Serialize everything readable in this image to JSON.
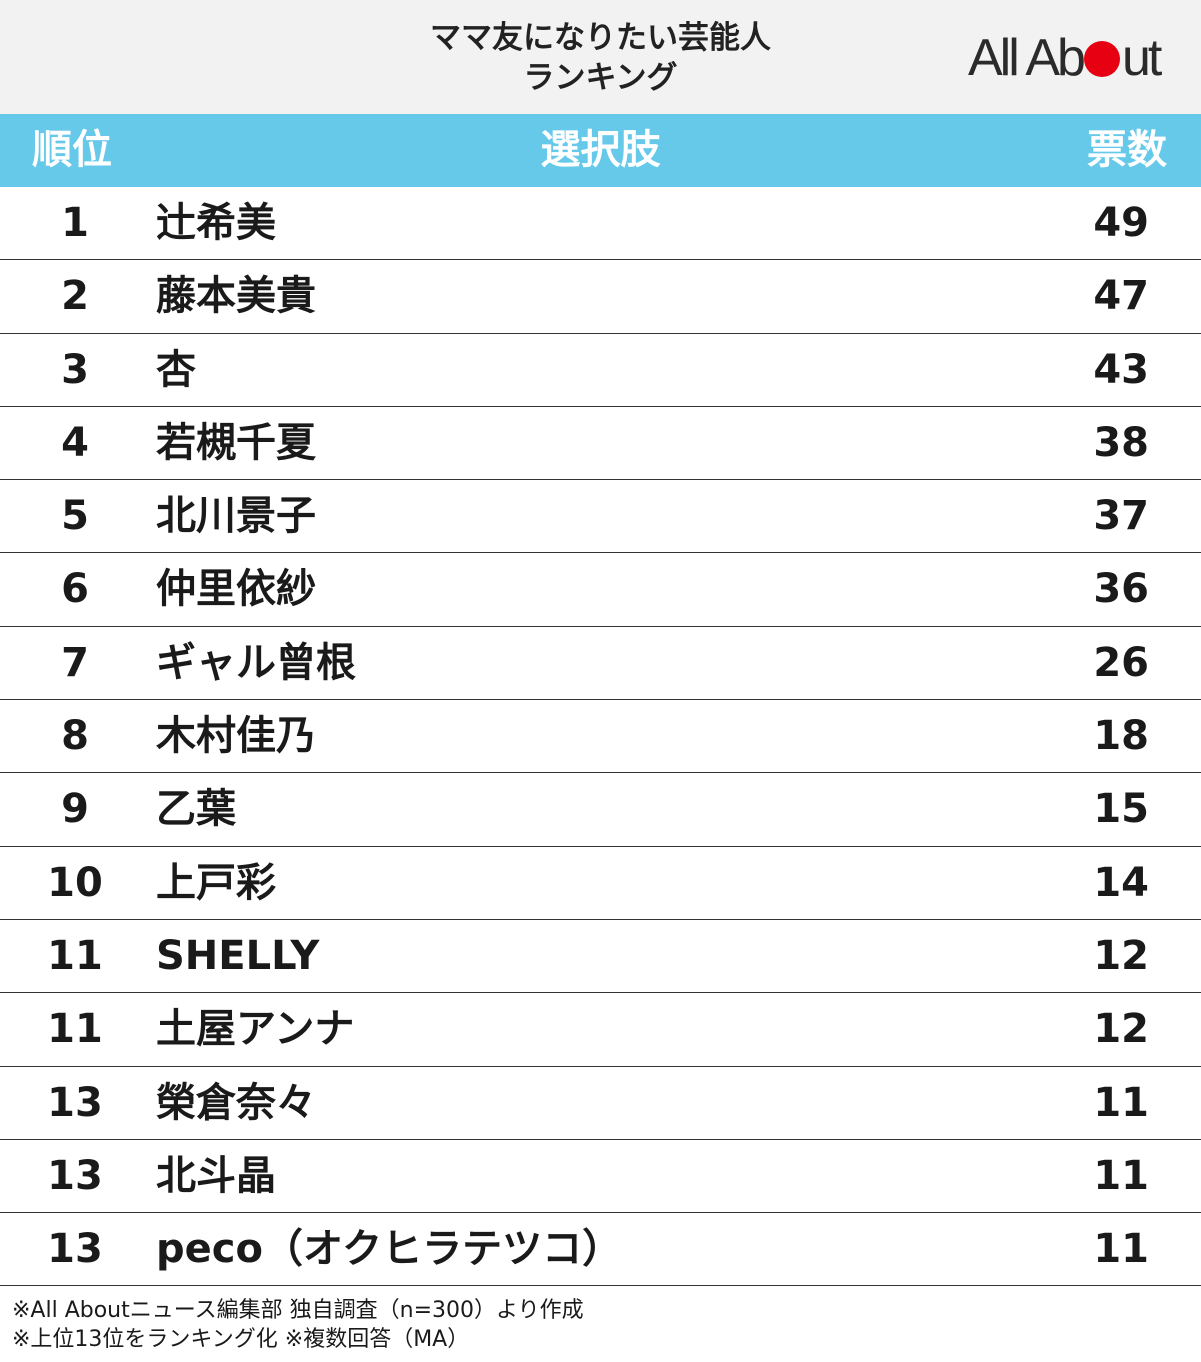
{
  "header": {
    "title_line1": "ママ友になりたい芸能人",
    "title_line2": "ランキング",
    "logo_text_left": "All Ab",
    "logo_text_right": "ut",
    "logo_accent_color": "#e60012"
  },
  "table": {
    "header_color": "#66c9ea",
    "columns": {
      "rank": "順位",
      "choice": "選択肢",
      "votes": "票数"
    },
    "rows": [
      {
        "rank": "1",
        "name": "辻希美",
        "votes": "49"
      },
      {
        "rank": "2",
        "name": "藤本美貴",
        "votes": "47"
      },
      {
        "rank": "3",
        "name": "杏",
        "votes": "43"
      },
      {
        "rank": "4",
        "name": "若槻千夏",
        "votes": "38"
      },
      {
        "rank": "5",
        "name": "北川景子",
        "votes": "37"
      },
      {
        "rank": "6",
        "name": "仲里依紗",
        "votes": "36"
      },
      {
        "rank": "7",
        "name": "ギャル曾根",
        "votes": "26"
      },
      {
        "rank": "8",
        "name": "木村佳乃",
        "votes": "18"
      },
      {
        "rank": "9",
        "name": "乙葉",
        "votes": "15"
      },
      {
        "rank": "10",
        "name": "上戸彩",
        "votes": "14"
      },
      {
        "rank": "11",
        "name": "SHELLY",
        "votes": "12"
      },
      {
        "rank": "11",
        "name": "土屋アンナ",
        "votes": "12"
      },
      {
        "rank": "13",
        "name": "榮倉奈々",
        "votes": "11"
      },
      {
        "rank": "13",
        "name": "北斗晶",
        "votes": "11"
      },
      {
        "rank": "13",
        "name": "peco（オクヒラテツコ）",
        "votes": "11"
      }
    ]
  },
  "notes": {
    "line1": "※All Aboutニュース編集部 独自調査（n=300）より作成",
    "line2": "※上位13位をランキング化 ※複数回答（MA）"
  }
}
